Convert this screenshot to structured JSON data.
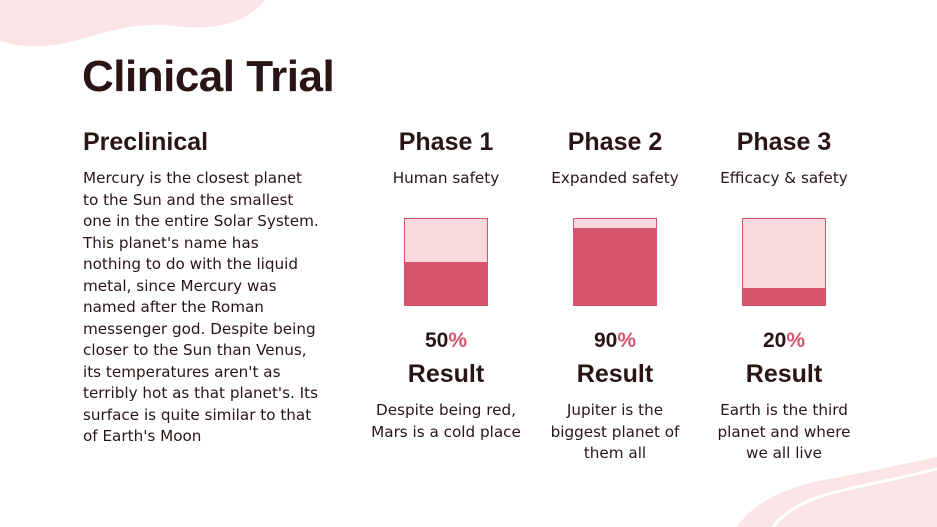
{
  "title": "Clinical Trial",
  "colors": {
    "accent": "#d6556e",
    "accent_light": "#f9d9dc",
    "blob": "#fbe4e6",
    "text": "#2a1515"
  },
  "preclinical": {
    "title": "Preclinical",
    "body": "Mercury is the closest planet to the Sun and the smallest one in the entire Solar System. This planet's name has nothing to do with the liquid metal, since Mercury was named after the Roman messenger god. Despite being closer to the Sun than Venus, its temperatures aren't as terribly hot as that planet's. Its surface is quite similar to that of Earth's Moon"
  },
  "phases": [
    {
      "title": "Phase 1",
      "subtitle": "Human safety",
      "value": "50",
      "percent_sign": "%",
      "fill_fraction": 0.5,
      "result_label": "Result",
      "description": "Despite being red, Mars is a cold place"
    },
    {
      "title": "Phase 2",
      "subtitle": "Expanded safety",
      "value": "90",
      "percent_sign": "%",
      "fill_fraction": 0.9,
      "result_label": "Result",
      "description": "Jupiter is the biggest planet of them all"
    },
    {
      "title": "Phase 3",
      "subtitle": "Efficacy & safety",
      "value": "20",
      "percent_sign": "%",
      "fill_fraction": 0.2,
      "result_label": "Result",
      "description": "Earth is the third planet and where we all live"
    }
  ]
}
